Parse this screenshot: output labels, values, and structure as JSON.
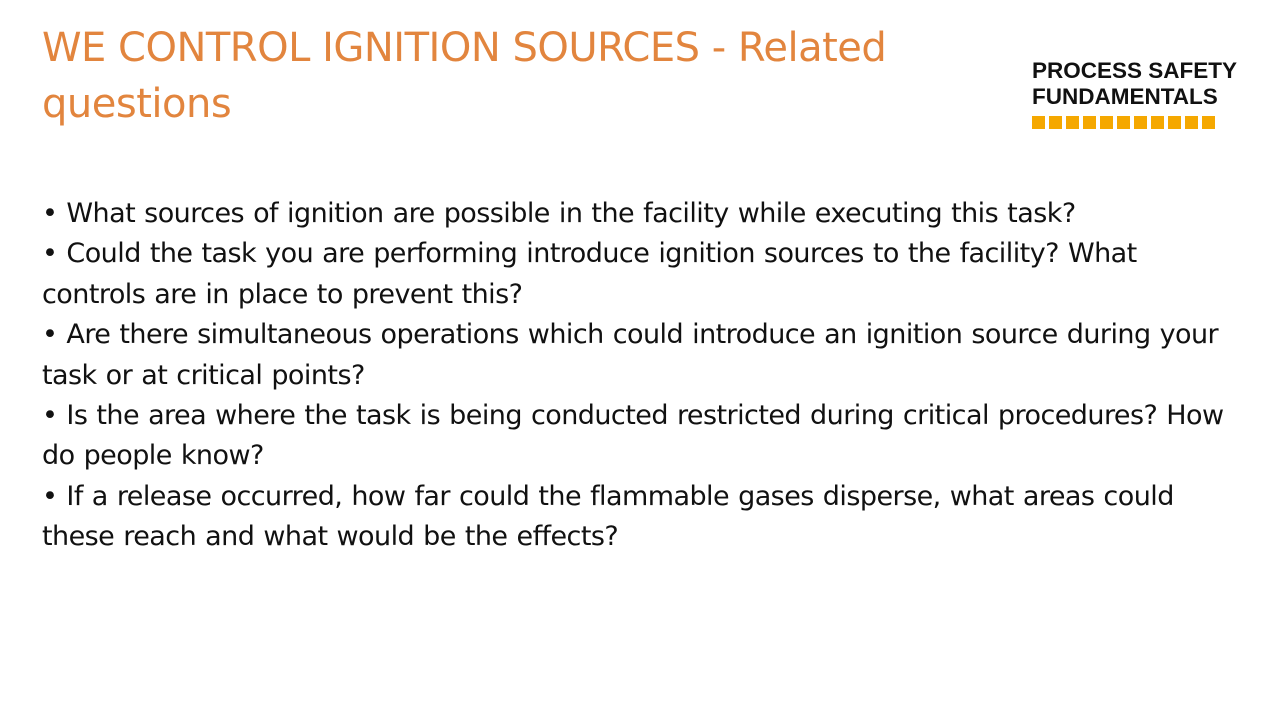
{
  "slide": {
    "title": "WE CONTROL IGNITION SOURCES - Related questions",
    "logo": {
      "line1": "PROCESS SAFETY",
      "line2": "FUNDAMENTALS",
      "accent_color": "#F5A800"
    },
    "title_color": "#E2853E",
    "bullets": [
      "• What sources of ignition are possible in the facility while executing this task?",
      "• Could the task you are performing introduce ignition sources to the facility? What controls are in place to prevent this?",
      "• Are there simultaneous operations which could introduce an ignition source during your task or at critical points?",
      "• Is the area where the task is being conducted restricted during critical procedures? How do people know?",
      "• If a release occurred, how far could the flammable gases disperse, what areas could these reach and what would be the effects?"
    ]
  }
}
